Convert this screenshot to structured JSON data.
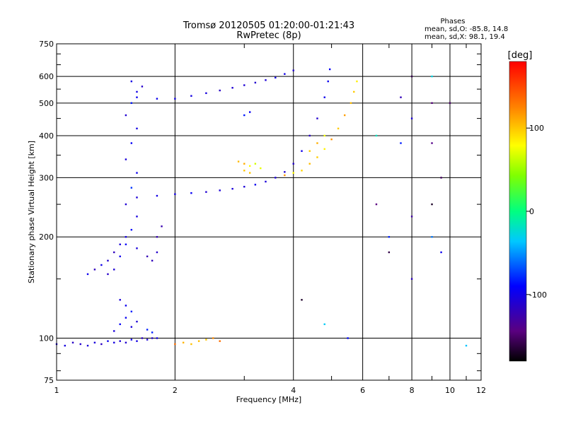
{
  "chart_data": {
    "type": "scatter",
    "title": "Tromsø 20120505 01:20:00-01:21:43",
    "subtitle": "RwPretec (8p)",
    "stats": {
      "heading": "Phases",
      "line1": "mean, sd,O: -85.8, 14.8",
      "line2": "mean, sd,X:  98.1, 19.4"
    },
    "xlabel": "Frequency [MHz]",
    "ylabel": "Stationary phase Virtual Height [km]",
    "xscale": "log",
    "yscale": "log",
    "xlim": [
      1,
      12
    ],
    "ylim": [
      75,
      750
    ],
    "xticks": [
      1,
      2,
      4,
      6,
      8,
      10,
      12
    ],
    "yticks": [
      75,
      100,
      200,
      300,
      400,
      500,
      600,
      750
    ],
    "grid": true,
    "colorbar": {
      "label": "[deg]",
      "range": [
        -180,
        180
      ],
      "ticks": [
        100,
        0,
        -100
      ],
      "colormap": "rainbow"
    },
    "series": [
      {
        "id": "o-E",
        "phase": -105,
        "spread": 12,
        "points": [
          [
            1.0,
            96
          ],
          [
            1.05,
            95
          ],
          [
            1.1,
            97
          ],
          [
            1.15,
            96
          ],
          [
            1.2,
            95
          ],
          [
            1.25,
            97
          ],
          [
            1.3,
            96
          ],
          [
            1.35,
            98
          ],
          [
            1.4,
            97
          ],
          [
            1.45,
            98
          ],
          [
            1.5,
            97
          ],
          [
            1.55,
            99
          ],
          [
            1.6,
            98
          ],
          [
            1.65,
            100
          ],
          [
            1.7,
            99
          ],
          [
            1.75,
            100
          ],
          [
            1.8,
            100
          ]
        ]
      },
      {
        "id": "es-clusters",
        "phase": -95,
        "spread": 15,
        "points": [
          [
            1.4,
            105
          ],
          [
            1.45,
            110
          ],
          [
            1.5,
            115
          ],
          [
            1.55,
            108
          ],
          [
            1.6,
            112
          ],
          [
            1.7,
            106
          ],
          [
            1.75,
            104
          ],
          [
            1.45,
            130
          ],
          [
            1.5,
            125
          ],
          [
            1.55,
            120
          ]
        ]
      },
      {
        "id": "o-F-spread-column",
        "phase": -95,
        "spread": 20,
        "points": [
          [
            1.4,
            160
          ],
          [
            1.45,
            175
          ],
          [
            1.5,
            190
          ],
          [
            1.55,
            210
          ],
          [
            1.6,
            230
          ],
          [
            1.5,
            250
          ],
          [
            1.55,
            280
          ],
          [
            1.6,
            310
          ],
          [
            1.5,
            340
          ],
          [
            1.55,
            380
          ],
          [
            1.6,
            420
          ],
          [
            1.5,
            460
          ],
          [
            1.55,
            500
          ],
          [
            1.6,
            540
          ],
          [
            1.55,
            580
          ],
          [
            1.65,
            560
          ]
        ]
      },
      {
        "id": "o-F-low-spread",
        "phase": -110,
        "spread": 15,
        "points": [
          [
            1.2,
            155
          ],
          [
            1.25,
            160
          ],
          [
            1.3,
            165
          ],
          [
            1.35,
            170
          ],
          [
            1.4,
            180
          ],
          [
            1.45,
            190
          ],
          [
            1.35,
            155
          ],
          [
            1.5,
            200
          ],
          [
            1.6,
            185
          ],
          [
            1.7,
            175
          ],
          [
            1.75,
            170
          ],
          [
            1.8,
            180
          ],
          [
            1.8,
            200
          ],
          [
            1.85,
            215
          ]
        ]
      },
      {
        "id": "o-F2-trace",
        "phase": -105,
        "spread": 12,
        "points": [
          [
            1.6,
            262
          ],
          [
            1.8,
            265
          ],
          [
            2.0,
            268
          ],
          [
            2.2,
            270
          ],
          [
            2.4,
            272
          ],
          [
            2.6,
            275
          ],
          [
            2.8,
            278
          ],
          [
            3.0,
            282
          ],
          [
            3.2,
            286
          ],
          [
            3.4,
            292
          ],
          [
            3.6,
            300
          ],
          [
            3.8,
            312
          ],
          [
            4.0,
            330
          ],
          [
            4.2,
            360
          ],
          [
            4.4,
            400
          ],
          [
            4.6,
            450
          ],
          [
            4.8,
            520
          ],
          [
            4.9,
            580
          ],
          [
            4.95,
            630
          ]
        ]
      },
      {
        "id": "o-F2-upper",
        "phase": -105,
        "spread": 10,
        "points": [
          [
            1.6,
            520
          ],
          [
            1.8,
            515
          ],
          [
            2.0,
            515
          ],
          [
            2.2,
            525
          ],
          [
            2.4,
            535
          ],
          [
            2.6,
            545
          ],
          [
            2.8,
            555
          ],
          [
            3.0,
            565
          ],
          [
            3.2,
            575
          ],
          [
            3.4,
            585
          ],
          [
            3.6,
            595
          ],
          [
            3.8,
            610
          ],
          [
            4.0,
            625
          ]
        ]
      },
      {
        "id": "x-F2-trace",
        "phase": 100,
        "spread": 20,
        "points": [
          [
            3.8,
            305
          ],
          [
            4.0,
            310
          ],
          [
            4.2,
            315
          ],
          [
            4.4,
            330
          ],
          [
            4.6,
            345
          ],
          [
            4.8,
            365
          ],
          [
            5.0,
            390
          ],
          [
            5.2,
            420
          ],
          [
            5.4,
            460
          ],
          [
            5.6,
            500
          ],
          [
            5.7,
            540
          ],
          [
            5.8,
            580
          ]
        ]
      },
      {
        "id": "x-F2-mid",
        "phase": 90,
        "spread": 25,
        "points": [
          [
            2.9,
            335
          ],
          [
            3.0,
            330
          ],
          [
            3.1,
            325
          ],
          [
            3.2,
            330
          ],
          [
            3.3,
            320
          ],
          [
            3.0,
            315
          ],
          [
            3.1,
            310
          ],
          [
            4.4,
            360
          ],
          [
            4.6,
            380
          ],
          [
            4.8,
            400
          ]
        ]
      },
      {
        "id": "x-E-low",
        "phase": 120,
        "spread": 20,
        "points": [
          [
            2.0,
            96
          ],
          [
            2.1,
            97
          ],
          [
            2.2,
            96
          ],
          [
            2.3,
            98
          ],
          [
            2.4,
            99
          ],
          [
            2.5,
            100
          ],
          [
            2.6,
            98
          ]
        ]
      },
      {
        "id": "scatter-noise",
        "phase": -80,
        "spread": 90,
        "points": [
          [
            6.5,
            400
          ],
          [
            6.5,
            250
          ],
          [
            7.0,
            200
          ],
          [
            7.0,
            180
          ],
          [
            7.5,
            520
          ],
          [
            7.5,
            380
          ],
          [
            8.0,
            600
          ],
          [
            8.0,
            450
          ],
          [
            8.0,
            230
          ],
          [
            8.0,
            150
          ],
          [
            9.0,
            600
          ],
          [
            9.0,
            500
          ],
          [
            9.0,
            380
          ],
          [
            9.0,
            250
          ],
          [
            9.0,
            200
          ],
          [
            9.5,
            300
          ],
          [
            9.5,
            180
          ],
          [
            10.0,
            500
          ],
          [
            3.0,
            460
          ],
          [
            3.1,
            470
          ],
          [
            4.2,
            130
          ],
          [
            4.8,
            110
          ],
          [
            5.5,
            100
          ],
          [
            11.0,
            95
          ]
        ]
      }
    ]
  }
}
